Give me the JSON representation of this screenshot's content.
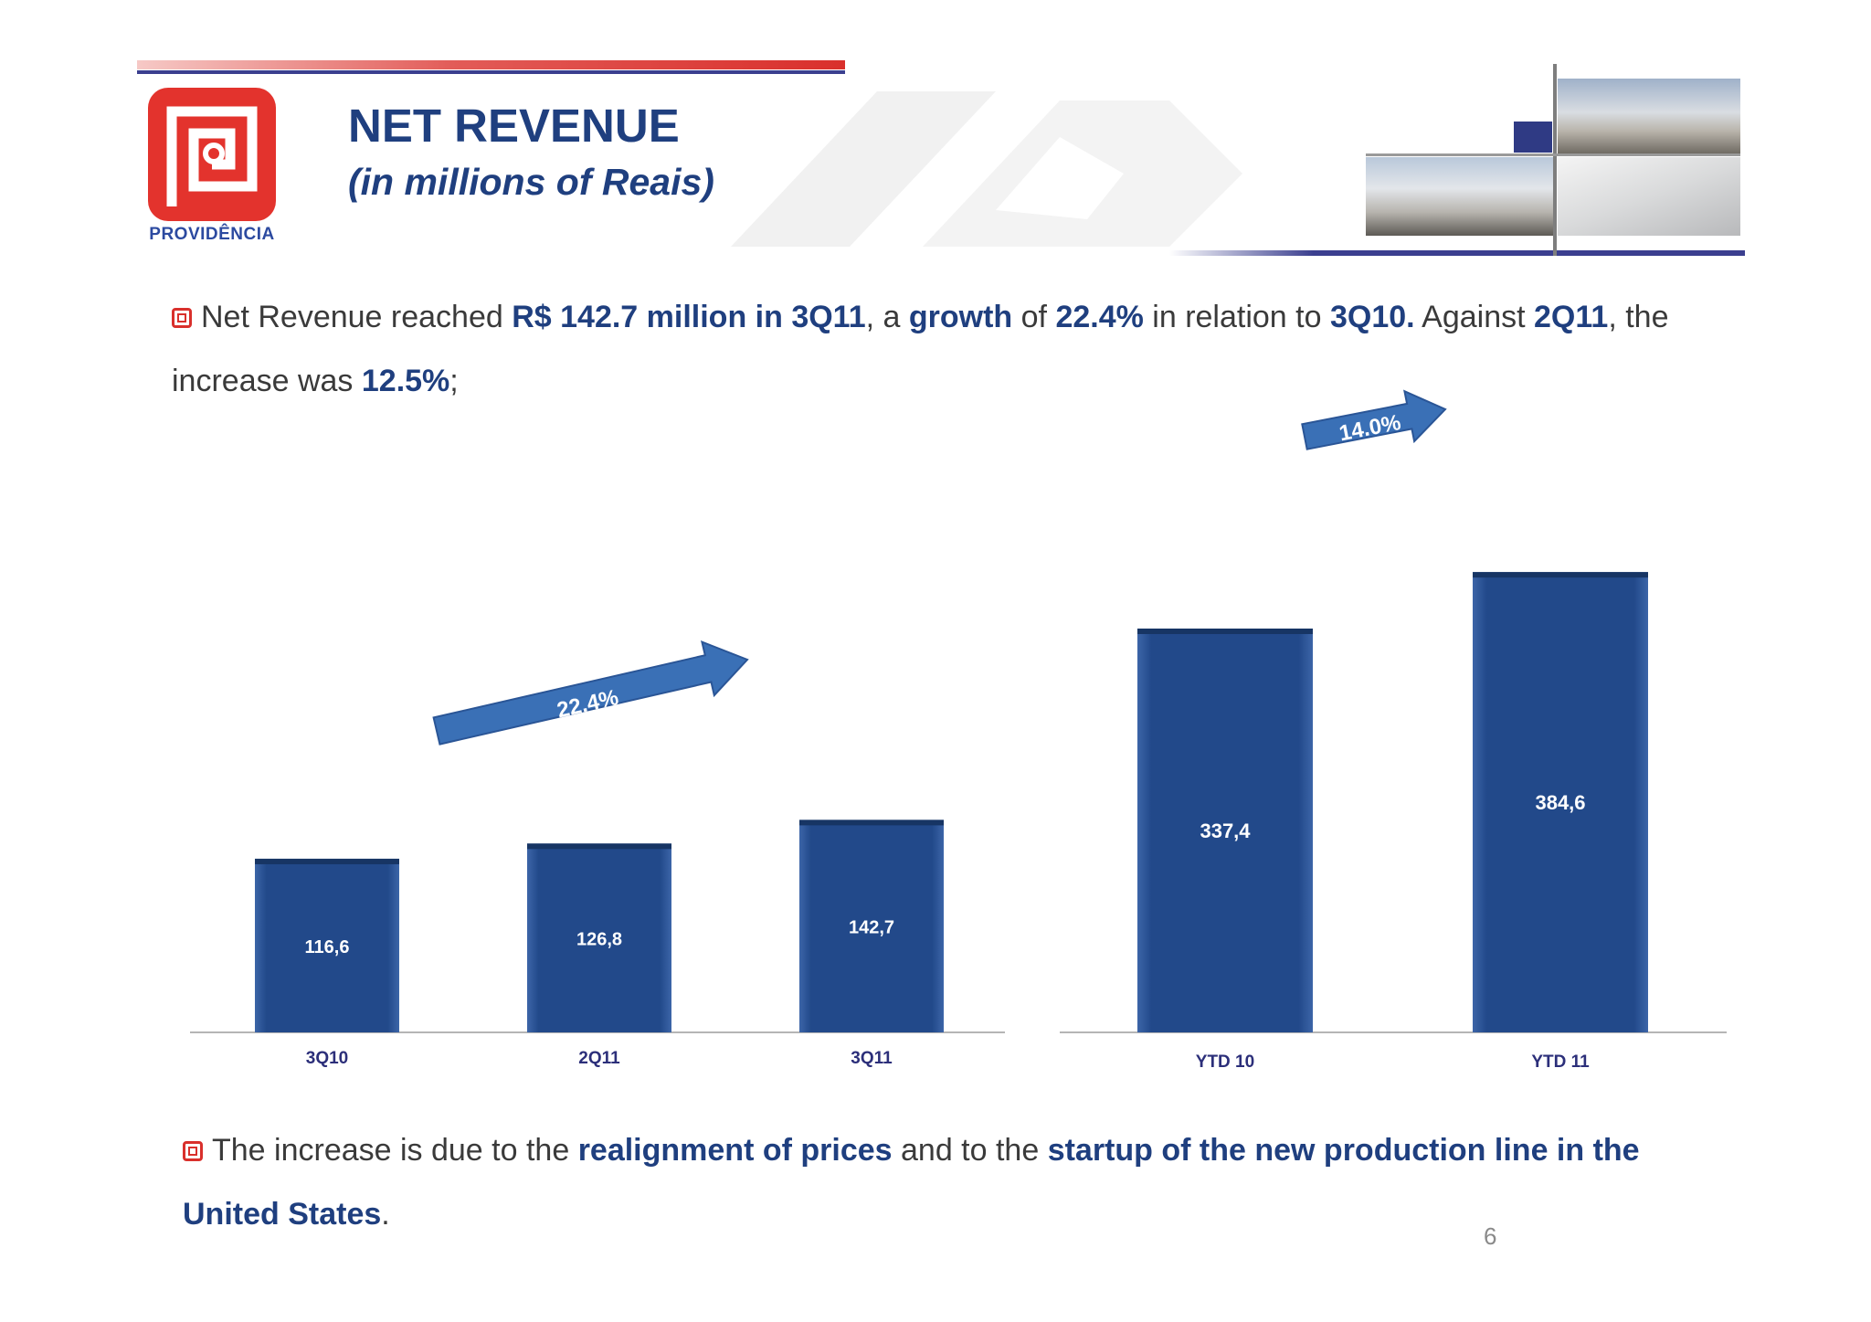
{
  "header": {
    "logo_text": "PROVIDÊNCIA",
    "title": "NET REVENUE",
    "subtitle": "(in millions of Reais)"
  },
  "bullets": {
    "first": {
      "t1": "Net Revenue reached ",
      "b1": "R$ 142.7 million in 3Q11",
      "t2": ", a ",
      "b2": "growth",
      "t3": " of ",
      "b3": "22.4%",
      "t4": " in relation to ",
      "b4": "3Q10.",
      "t5": " Against ",
      "b5": "2Q11",
      "t6": ", the increase was ",
      "b6": "12.5%",
      "t7": ";"
    },
    "second": {
      "t1": "The increase is due to the ",
      "b1": "realignment of prices",
      "t2": " and to the ",
      "b2": "startup of the new production line in the United States",
      "t3": "."
    }
  },
  "page_number": "6",
  "colors": {
    "bar": "#1f4786",
    "bar_top": "#173564",
    "arrow": "#3a70b6",
    "axis_label": "#2c2f7a",
    "title": "#1f3f7f",
    "accent_red": "#d9302c"
  },
  "chart_data": [
    {
      "type": "bar",
      "categories": [
        "3Q10",
        "2Q11",
        "3Q11"
      ],
      "values": [
        116.6,
        126.8,
        142.7
      ],
      "data_labels": [
        "116,6",
        "126,8",
        "142,7"
      ],
      "annotation": "22.4%"
    },
    {
      "type": "bar",
      "categories": [
        "YTD 10",
        "YTD 11"
      ],
      "values": [
        337.4,
        384.6
      ],
      "data_labels": [
        "337,4",
        "384,6"
      ],
      "annotation": "14.0%"
    }
  ]
}
